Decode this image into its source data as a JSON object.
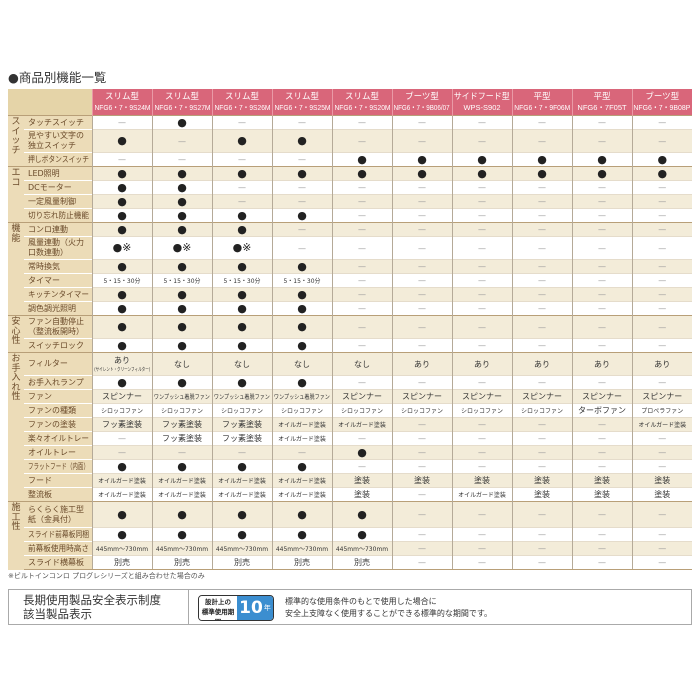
{
  "title": "●商品別機能一覧",
  "colors": {
    "header": "#d9667a",
    "label_bg": "#ecdcb8",
    "row_alt": "#f3ecd9",
    "badge": "#3b8ed0"
  },
  "columns": [
    {
      "type": "スリム型",
      "model": "NFG6・7・9S24M"
    },
    {
      "type": "スリム型",
      "model": "NFG6・7・9S27M"
    },
    {
      "type": "スリム型",
      "model": "NFG6・7・9S26M"
    },
    {
      "type": "スリム型",
      "model": "NFG6・7・9S25M"
    },
    {
      "type": "スリム型",
      "model": "NFG6・7・9S20M"
    },
    {
      "type": "ブーツ型",
      "model": "NFG6・7・9B06/07"
    },
    {
      "type": "サイドフード型",
      "model": "WPS-S902"
    },
    {
      "type": "平型",
      "model": "NFG6・7・9F06M"
    },
    {
      "type": "平型",
      "model": "NFG6・7F05T"
    },
    {
      "type": "ブーツ型",
      "model": "NFG6・7・9B08P"
    }
  ],
  "sections": [
    {
      "label": "スイッチ",
      "rows": [
        {
          "label": "タッチスイッチ",
          "h": 1,
          "values": [
            "—",
            "●",
            "—",
            "—",
            "—",
            "—",
            "—",
            "—",
            "—",
            "—"
          ]
        },
        {
          "label": "見やすい文字の独立スイッチ",
          "h": 2,
          "values": [
            "●",
            "—",
            "●",
            "●",
            "—",
            "—",
            "—",
            "—",
            "—",
            "—"
          ]
        },
        {
          "label": "押しボタンスイッチ",
          "h": 1,
          "values": [
            "—",
            "—",
            "—",
            "—",
            "●",
            "●",
            "●",
            "●",
            "●",
            "●"
          ]
        }
      ]
    },
    {
      "label": "エコ",
      "rows": [
        {
          "label": "LED照明",
          "h": 1,
          "values": [
            "●",
            "●",
            "●",
            "●",
            "●",
            "●",
            "●",
            "●",
            "●",
            "●"
          ]
        },
        {
          "label": "DCモーター",
          "h": 1,
          "values": [
            "●",
            "●",
            "—",
            "—",
            "—",
            "—",
            "—",
            "—",
            "—",
            "—"
          ]
        },
        {
          "label": "一定風量制御",
          "h": 1,
          "values": [
            "●",
            "●",
            "—",
            "—",
            "—",
            "—",
            "—",
            "—",
            "—",
            "—"
          ]
        },
        {
          "label": "切り忘れ防止機能",
          "h": 1,
          "values": [
            "●",
            "●",
            "●",
            "●",
            "—",
            "—",
            "—",
            "—",
            "—",
            "—"
          ]
        }
      ]
    },
    {
      "label": "機能",
      "rows": [
        {
          "label": "コンロ連動",
          "h": 1,
          "values": [
            "●",
            "●",
            "●",
            "—",
            "—",
            "—",
            "—",
            "—",
            "—",
            "—"
          ]
        },
        {
          "label": "風量連動（火力口数連動）",
          "h": 2,
          "values": [
            "●※",
            "●※",
            "●※",
            "—",
            "—",
            "—",
            "—",
            "—",
            "—",
            "—"
          ]
        },
        {
          "label": "常時換気",
          "h": 1,
          "values": [
            "●",
            "●",
            "●",
            "●",
            "—",
            "—",
            "—",
            "—",
            "—",
            "—"
          ]
        },
        {
          "label": "タイマー",
          "h": 1,
          "values": [
            "5・15・30分",
            "5・15・30分",
            "5・15・30分",
            "5・15・30分",
            "—",
            "—",
            "—",
            "—",
            "—",
            "—"
          ]
        },
        {
          "label": "キッチンタイマー",
          "h": 1,
          "values": [
            "●",
            "●",
            "●",
            "●",
            "—",
            "—",
            "—",
            "—",
            "—",
            "—"
          ]
        },
        {
          "label": "調色調光照明",
          "h": 1,
          "values": [
            "●",
            "●",
            "●",
            "●",
            "—",
            "—",
            "—",
            "—",
            "—",
            "—"
          ]
        }
      ]
    },
    {
      "label": "安心性",
      "rows": [
        {
          "label": "ファン自動停止（整流板開時）",
          "h": 2,
          "values": [
            "●",
            "●",
            "●",
            "●",
            "—",
            "—",
            "—",
            "—",
            "—",
            "—"
          ]
        },
        {
          "label": "スイッチロック",
          "h": 1,
          "values": [
            "●",
            "●",
            "●",
            "●",
            "—",
            "—",
            "—",
            "—",
            "—",
            "—"
          ]
        }
      ]
    },
    {
      "label": "お手入れ性",
      "rows": [
        {
          "label": "フィルター",
          "h": 2,
          "values": [
            "あり",
            "なし",
            "なし",
            "なし",
            "なし",
            "あり",
            "あり",
            "あり",
            "あり",
            "あり"
          ],
          "subnote": "(サイレント・クリーンフィルター)"
        },
        {
          "label": "お手入れランプ",
          "h": 1,
          "values": [
            "●",
            "●",
            "●",
            "●",
            "—",
            "—",
            "—",
            "—",
            "—",
            "—"
          ]
        },
        {
          "label": "ファン",
          "h": 1,
          "values": [
            "スピンナー",
            "ワンプッシュ着脱ファン",
            "ワンプッシュ着脱ファン",
            "ワンプッシュ着脱ファン",
            "スピンナー",
            "スピンナー",
            "スピンナー",
            "スピンナー",
            "スピンナー",
            "スピンナー"
          ]
        },
        {
          "label": "ファンの種類",
          "h": 1,
          "values": [
            "シロッコファン",
            "シロッコファン",
            "シロッコファン",
            "シロッコファン",
            "シロッコファン",
            "シロッコファン",
            "シロッコファン",
            "シロッコファン",
            "ターボファン",
            "プロペラファン"
          ]
        },
        {
          "label": "ファンの塗装",
          "h": 1,
          "values": [
            "フッ素塗装",
            "フッ素塗装",
            "フッ素塗装",
            "オイルガード塗装",
            "オイルガード塗装",
            "—",
            "—",
            "—",
            "—",
            "オイルガード塗装"
          ]
        },
        {
          "label": "楽々オイルトレー",
          "h": 1,
          "values": [
            "—",
            "フッ素塗装",
            "フッ素塗装",
            "オイルガード塗装",
            "—",
            "—",
            "—",
            "—",
            "—",
            "—"
          ]
        },
        {
          "label": "オイルトレー",
          "h": 1,
          "values": [
            "—",
            "—",
            "—",
            "—",
            "●",
            "—",
            "—",
            "—",
            "—",
            "—"
          ]
        },
        {
          "label": "フラットフード（内面）",
          "h": 1,
          "values": [
            "●",
            "●",
            "●",
            "●",
            "—",
            "—",
            "—",
            "—",
            "—",
            "—"
          ]
        },
        {
          "label": "フード",
          "h": 1,
          "values": [
            "オイルガード塗装",
            "オイルガード塗装",
            "オイルガード塗装",
            "オイルガード塗装",
            "塗装",
            "塗装",
            "塗装",
            "塗装",
            "塗装",
            "塗装"
          ]
        },
        {
          "label": "整流板",
          "h": 1,
          "values": [
            "オイルガード塗装",
            "オイルガード塗装",
            "オイルガード塗装",
            "オイルガード塗装",
            "塗装",
            "—",
            "オイルガード塗装",
            "塗装",
            "塗装",
            "塗装"
          ]
        }
      ]
    },
    {
      "label": "施工性",
      "rows": [
        {
          "label": "らくらく施工型紙（金具付）",
          "h": 2,
          "values": [
            "●",
            "●",
            "●",
            "●",
            "●",
            "—",
            "—",
            "—",
            "—",
            "—"
          ]
        },
        {
          "label": "スライド前幕板同梱",
          "h": 1,
          "values": [
            "●",
            "●",
            "●",
            "●",
            "●",
            "—",
            "—",
            "—",
            "—",
            "—"
          ]
        },
        {
          "label": "前幕板使用時高さ",
          "h": 1,
          "values": [
            "445mm〜730mm",
            "445mm〜730mm",
            "445mm〜730mm",
            "445mm〜730mm",
            "445mm〜730mm",
            "—",
            "—",
            "—",
            "—",
            "—"
          ]
        },
        {
          "label": "スライド横幕板",
          "h": 1,
          "values": [
            "別売",
            "別売",
            "別売",
            "別売",
            "別売",
            "—",
            "—",
            "—",
            "—",
            "—"
          ]
        }
      ]
    }
  ],
  "footnote": "※ビルトインコンロ プログレシリーズと組み合わせた場合のみ",
  "safety": {
    "heading_line1": "長期使用製品安全表示制度",
    "heading_line2": "該当製品表示",
    "badge_top": "設計上の",
    "badge_bottom": "標準使用期間",
    "badge_number": "10",
    "badge_unit": "年",
    "desc_line1": "標準的な使用条件のもとで使用した場合に",
    "desc_line2": "安全上支障なく使用することができる標準的な期間です。"
  }
}
